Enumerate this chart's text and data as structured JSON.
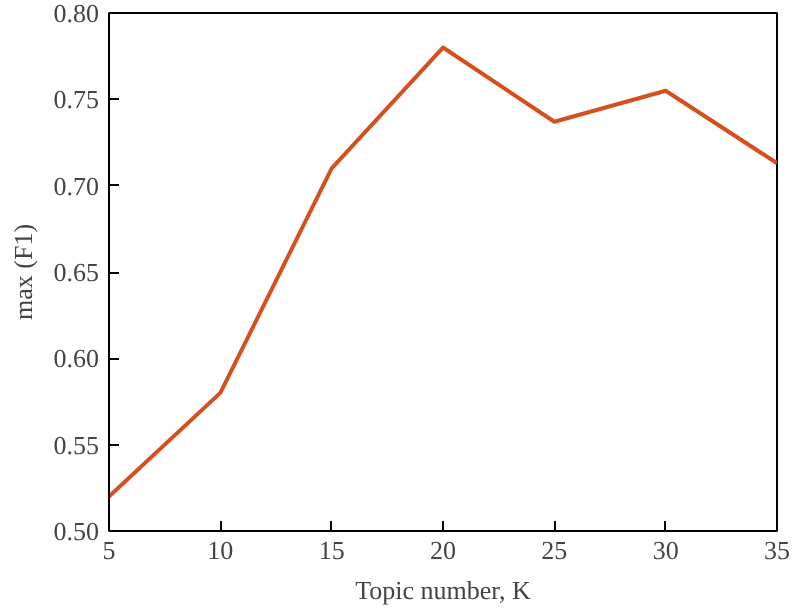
{
  "chart_data": {
    "type": "line",
    "xlabel": "Topic number, K",
    "ylabel": "max (F1)",
    "x": [
      5,
      10,
      15,
      20,
      25,
      30,
      35
    ],
    "series": [
      {
        "color": "#d4501e",
        "values": [
          0.52,
          0.58,
          0.71,
          0.78,
          0.737,
          0.755,
          0.713
        ]
      }
    ],
    "xlim": [
      5,
      35
    ],
    "xticks": [
      5,
      10,
      15,
      20,
      25,
      30,
      35
    ],
    "ylim": [
      0.5,
      0.8
    ],
    "yticks": [
      {
        "value": 0.5,
        "label": "0.50"
      },
      {
        "value": 0.55,
        "label": "0.55"
      },
      {
        "value": 0.6,
        "label": "0.60"
      },
      {
        "value": 0.65,
        "label": "0.65"
      },
      {
        "value": 0.7,
        "label": "0.70"
      },
      {
        "value": 0.75,
        "label": "0.75"
      },
      {
        "value": 0.8,
        "label": "0.80"
      }
    ],
    "grid": false,
    "marker": "none",
    "line_style": "solid"
  }
}
